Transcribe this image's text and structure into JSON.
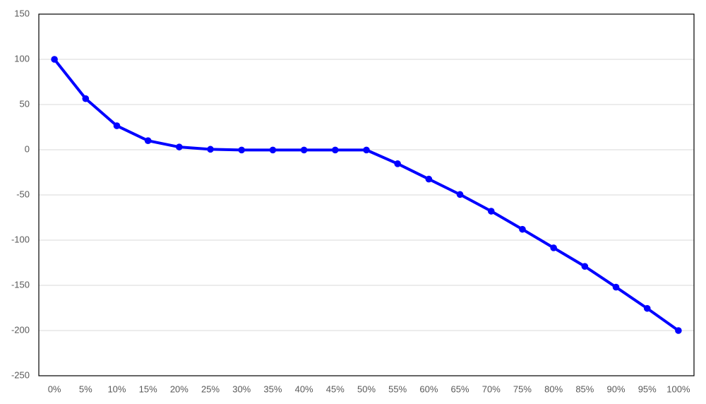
{
  "chart_data": {
    "type": "line",
    "title": "",
    "xlabel": "",
    "ylabel": "",
    "categories": [
      "0%",
      "5%",
      "10%",
      "15%",
      "20%",
      "25%",
      "30%",
      "35%",
      "40%",
      "45%",
      "50%",
      "55%",
      "60%",
      "65%",
      "70%",
      "75%",
      "80%",
      "85%",
      "90%",
      "95%",
      "100%"
    ],
    "series": [
      {
        "values": [
          100,
          56.5,
          26.5,
          10,
          3,
          0.5,
          -0.3,
          -0.3,
          -0.3,
          -0.3,
          -0.3,
          -15.5,
          -32.5,
          -49.5,
          -68,
          -88,
          -108.5,
          -129,
          -152,
          -175.5,
          -200
        ],
        "color": "#0000ff"
      }
    ],
    "ylim": [
      -250,
      150
    ],
    "yticks": [
      "150",
      "100",
      "50",
      "0",
      "-50",
      "-100",
      "-150",
      "-200",
      "-250"
    ],
    "ytick_values": [
      150,
      100,
      50,
      0,
      -50,
      -100,
      -150,
      -200,
      -250
    ],
    "grid": true,
    "legend": "none",
    "markers": true
  }
}
